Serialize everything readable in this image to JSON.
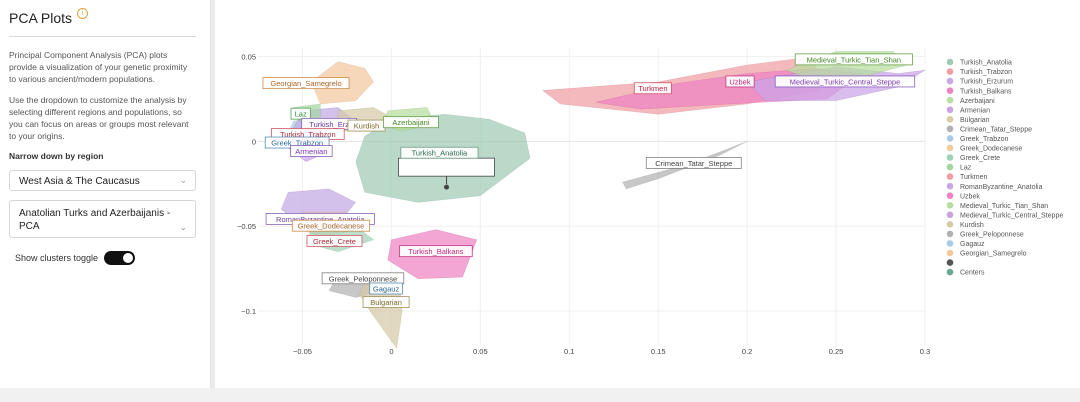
{
  "sidebar": {
    "title": "PCA Plots",
    "info_icon": "info-icon",
    "paragraph1": "Principal Component Analysis (PCA) plots provide a visualization of your genetic proximity to various ancient/modern populations.",
    "paragraph2": "Use the dropdown to customize the analysis by selecting different regions and populations, so you can focus on areas or groups most relevant to your origins.",
    "narrow_label": "Narrow down by region",
    "region_select": "West Asia & The Caucasus",
    "population_select": "Anatolian Turks and Azerbaijanis - PCA",
    "toggle_label": "Show clusters toggle",
    "toggle_on": true
  },
  "chart_data": {
    "type": "scatter",
    "xlim": [
      -0.075,
      0.3
    ],
    "ylim": [
      -0.12,
      0.055
    ],
    "x_ticks": [
      "−0.05",
      "0",
      "0.05",
      "0.1",
      "0.15",
      "0.2",
      "0.25",
      "0.3"
    ],
    "x_tick_values": [
      -0.05,
      0,
      0.05,
      0.1,
      0.15,
      0.2,
      0.25,
      0.3
    ],
    "y_ticks": [
      "0.05",
      "0",
      "−0.05",
      "−0.1"
    ],
    "y_tick_values": [
      0.05,
      0,
      -0.05,
      -0.1
    ],
    "grid": true,
    "legend_position": "right",
    "legend": [
      {
        "name": "Turkish_Anatolia",
        "color": "#9fcbb4"
      },
      {
        "name": "Turkish_Trabzon",
        "color": "#ef9ea3"
      },
      {
        "name": "Turkish_Erzurum",
        "color": "#c4a9e3"
      },
      {
        "name": "Turkish_Balkans",
        "color": "#ef82c2"
      },
      {
        "name": "Azerbaijani",
        "color": "#b7de9f"
      },
      {
        "name": "Armenian",
        "color": "#c9a3e6"
      },
      {
        "name": "Bulgarian",
        "color": "#d6cba6"
      },
      {
        "name": "Crimean_Tatar_Steppe",
        "color": "#b1b1b1"
      },
      {
        "name": "Greek_Trabzon",
        "color": "#a9cbe6"
      },
      {
        "name": "Greek_Dodecanese",
        "color": "#f2c89f"
      },
      {
        "name": "Greek_Crete",
        "color": "#9fd3b9"
      },
      {
        "name": "Laz",
        "color": "#a4d6a4"
      },
      {
        "name": "Turkmen",
        "color": "#ef9ea3"
      },
      {
        "name": "RomanByzantine_Anatolia",
        "color": "#c4a9e3"
      },
      {
        "name": "Uzbek",
        "color": "#ef82c2"
      },
      {
        "name": "Medieval_Turkic_Tian_Shan",
        "color": "#b7de9f"
      },
      {
        "name": "Medieval_Turkic_Central_Steppe",
        "color": "#c9a3e6"
      },
      {
        "name": "Kurdish",
        "color": "#d6cba6"
      },
      {
        "name": "Greek_Peloponnese",
        "color": "#b1b1b1"
      },
      {
        "name": "Gagauz",
        "color": "#a9cbe6"
      },
      {
        "name": "Georgian_Samegrelo",
        "color": "#f2c89f"
      },
      {
        "name": "",
        "color": "#555555"
      },
      {
        "name": "Centers",
        "color": "#6aa890"
      }
    ],
    "clusters": [
      {
        "name": "Turkish_Anatolia",
        "color": "#9fcbb4",
        "border": "#6b9a82",
        "hull": [
          [
            -0.015,
            0.003
          ],
          [
            0.0,
            0.013
          ],
          [
            0.03,
            0.016
          ],
          [
            0.055,
            0.013
          ],
          [
            0.075,
            0.005
          ],
          [
            0.078,
            -0.01
          ],
          [
            0.05,
            -0.032
          ],
          [
            0.015,
            -0.036
          ],
          [
            -0.015,
            -0.03
          ],
          [
            -0.02,
            -0.012
          ]
        ]
      },
      {
        "name": "Turkmen",
        "color": "#ef9ea3",
        "border": "#d35863",
        "hull": [
          [
            0.085,
            0.03
          ],
          [
            0.15,
            0.035
          ],
          [
            0.2,
            0.045
          ],
          [
            0.238,
            0.05
          ],
          [
            0.24,
            0.03
          ],
          [
            0.2,
            0.022
          ],
          [
            0.15,
            0.016
          ],
          [
            0.095,
            0.022
          ]
        ]
      },
      {
        "name": "Uzbek",
        "color": "#ef82c2",
        "border": "#c23785",
        "hull": [
          [
            0.115,
            0.023
          ],
          [
            0.16,
            0.034
          ],
          [
            0.2,
            0.04
          ],
          [
            0.24,
            0.043
          ],
          [
            0.265,
            0.04
          ],
          [
            0.245,
            0.025
          ],
          [
            0.19,
            0.022
          ],
          [
            0.14,
            0.019
          ]
        ]
      },
      {
        "name": "Medieval_Turkic_Central_Steppe",
        "color": "#c9a3e6",
        "border": "#8b5ec0",
        "hull": [
          [
            0.2,
            0.035
          ],
          [
            0.25,
            0.044
          ],
          [
            0.285,
            0.04
          ],
          [
            0.3,
            0.042
          ],
          [
            0.285,
            0.032
          ],
          [
            0.25,
            0.024
          ],
          [
            0.21,
            0.024
          ]
        ]
      },
      {
        "name": "Medieval_Turkic_Tian_Shan",
        "color": "#b7de9f",
        "border": "#6aa24a",
        "hull": [
          [
            0.222,
            0.042
          ],
          [
            0.25,
            0.053
          ],
          [
            0.282,
            0.053
          ],
          [
            0.29,
            0.045
          ],
          [
            0.265,
            0.038
          ],
          [
            0.232,
            0.038
          ]
        ]
      },
      {
        "name": "Crimean_Tatar_Steppe",
        "color": "#b1b1b1",
        "border": "#808080",
        "hull": [
          [
            0.13,
            -0.024
          ],
          [
            0.165,
            -0.014
          ],
          [
            0.188,
            -0.005
          ],
          [
            0.2,
            0.0
          ],
          [
            0.185,
            -0.008
          ],
          [
            0.15,
            -0.022
          ],
          [
            0.132,
            -0.028
          ]
        ]
      },
      {
        "name": "Georgian_Samegrelo",
        "color": "#f2c89f",
        "border": "#c98b4a",
        "hull": [
          [
            -0.03,
            0.047
          ],
          [
            -0.015,
            0.043
          ],
          [
            -0.01,
            0.035
          ],
          [
            -0.02,
            0.024
          ],
          [
            -0.04,
            0.022
          ],
          [
            -0.045,
            0.035
          ]
        ]
      },
      {
        "name": "Greek_Trabzon",
        "color": "#a9cbe6",
        "border": "#5a8fb8",
        "hull": [
          [
            -0.055,
            0.012
          ],
          [
            -0.04,
            0.014
          ],
          [
            -0.035,
            0.004
          ],
          [
            -0.05,
            0.0
          ],
          [
            -0.058,
            0.005
          ]
        ]
      },
      {
        "name": "Turkish_Erzurum",
        "color": "#c4a9e3",
        "border": "#8966b6",
        "hull": [
          [
            -0.05,
            0.018
          ],
          [
            -0.03,
            0.02
          ],
          [
            -0.02,
            0.012
          ],
          [
            -0.04,
            0.004
          ],
          [
            -0.055,
            0.008
          ]
        ]
      },
      {
        "name": "Armenian",
        "color": "#c9a3e6",
        "border": "#8b5ec0",
        "hull": [
          [
            -0.055,
            0.004
          ],
          [
            -0.04,
            0.006
          ],
          [
            -0.035,
            -0.006
          ],
          [
            -0.048,
            -0.012
          ],
          [
            -0.058,
            -0.004
          ]
        ]
      },
      {
        "name": "Kurdish",
        "color": "#d6cba6",
        "border": "#a2925a",
        "hull": [
          [
            -0.03,
            0.018
          ],
          [
            -0.01,
            0.02
          ],
          [
            0.0,
            0.014
          ],
          [
            -0.01,
            0.006
          ],
          [
            -0.03,
            0.006
          ]
        ]
      },
      {
        "name": "Azerbaijani",
        "color": "#b7de9f",
        "border": "#6aa24a",
        "hull": [
          [
            -0.002,
            0.018
          ],
          [
            0.02,
            0.02
          ],
          [
            0.025,
            0.01
          ],
          [
            0.005,
            0.006
          ],
          [
            -0.005,
            0.01
          ]
        ]
      },
      {
        "name": "Laz",
        "color": "#a4d6a4",
        "border": "#5aa05a",
        "hull": [
          [
            -0.055,
            0.02
          ],
          [
            -0.04,
            0.022
          ],
          [
            -0.04,
            0.012
          ],
          [
            -0.052,
            0.012
          ]
        ]
      },
      {
        "name": "RomanByzantine_Anatolia",
        "color": "#c4a9e3",
        "border": "#8966b6",
        "hull": [
          [
            -0.058,
            -0.03
          ],
          [
            -0.035,
            -0.028
          ],
          [
            -0.02,
            -0.036
          ],
          [
            -0.028,
            -0.046
          ],
          [
            -0.05,
            -0.05
          ],
          [
            -0.062,
            -0.04
          ]
        ]
      },
      {
        "name": "Greek_Dodecanese",
        "color": "#f2c89f",
        "border": "#c98b4a",
        "hull": [
          [
            -0.05,
            -0.042
          ],
          [
            -0.025,
            -0.042
          ],
          [
            -0.018,
            -0.052
          ],
          [
            -0.04,
            -0.056
          ],
          [
            -0.056,
            -0.05
          ]
        ]
      },
      {
        "name": "Greek_Crete",
        "color": "#9fd3b9",
        "border": "#5aa386",
        "hull": [
          [
            -0.045,
            -0.052
          ],
          [
            -0.02,
            -0.05
          ],
          [
            -0.01,
            -0.058
          ],
          [
            -0.03,
            -0.065
          ],
          [
            -0.048,
            -0.06
          ]
        ]
      },
      {
        "name": "Turkish_Balkans",
        "color": "#ef82c2",
        "border": "#c23785",
        "hull": [
          [
            0.0,
            -0.058
          ],
          [
            0.025,
            -0.052
          ],
          [
            0.048,
            -0.058
          ],
          [
            0.04,
            -0.08
          ],
          [
            0.015,
            -0.081
          ],
          [
            -0.002,
            -0.07
          ]
        ]
      },
      {
        "name": "Greek_Peloponnese",
        "color": "#b1b1b1",
        "border": "#808080",
        "hull": [
          [
            -0.032,
            -0.082
          ],
          [
            -0.008,
            -0.079
          ],
          [
            0.0,
            -0.087
          ],
          [
            -0.02,
            -0.092
          ],
          [
            -0.035,
            -0.088
          ]
        ]
      },
      {
        "name": "Gagauz",
        "color": "#a9cbe6",
        "border": "#5a8fb8",
        "hull": [
          [
            -0.015,
            -0.081
          ],
          [
            -0.002,
            -0.08
          ],
          [
            0.001,
            -0.086
          ],
          [
            -0.012,
            -0.088
          ]
        ]
      },
      {
        "name": "Bulgarian",
        "color": "#d6cba6",
        "border": "#a2925a",
        "hull": [
          [
            -0.015,
            -0.082
          ],
          [
            0.004,
            -0.078
          ],
          [
            0.006,
            -0.1
          ],
          [
            0.003,
            -0.122
          ],
          [
            -0.012,
            -0.1
          ],
          [
            -0.018,
            -0.09
          ]
        ]
      }
    ],
    "labels": [
      {
        "text": "Medieval_Turkic_Tian_Shan",
        "x": 0.26,
        "y": 0.048,
        "color": "#4a8a2a",
        "border": "#6aa24a"
      },
      {
        "text": "Turkmen",
        "x": 0.147,
        "y": 0.031,
        "color": "#c0284a",
        "border": "#d35863"
      },
      {
        "text": "Uzbek",
        "x": 0.196,
        "y": 0.035,
        "color": "#c0287a",
        "border": "#c23785"
      },
      {
        "text": "Medieval_Turkic_Central_Steppe",
        "x": 0.255,
        "y": 0.035,
        "color": "#7a3eb0",
        "border": "#8b5ec0"
      },
      {
        "text": "Georgian_Samegrelo",
        "x": -0.048,
        "y": 0.034,
        "color": "#a8662a",
        "border": "#c98b4a"
      },
      {
        "text": "Laz",
        "x": -0.051,
        "y": 0.016,
        "color": "#3a8a3a",
        "border": "#5aa05a"
      },
      {
        "text": "Turkish_Erz",
        "x": -0.035,
        "y": 0.01,
        "color": "#6a3ea0",
        "border": "#8966b6"
      },
      {
        "text": "Kurdish",
        "x": -0.014,
        "y": 0.009,
        "color": "#7a6a2a",
        "border": "#a2925a"
      },
      {
        "text": "Azerbaijani",
        "x": 0.011,
        "y": 0.011,
        "color": "#4a8a2a",
        "border": "#6aa24a"
      },
      {
        "text": "Turkish_Trabzon",
        "x": -0.047,
        "y": 0.004,
        "color": "#b02a3a",
        "border": "#d35863"
      },
      {
        "text": "Greek_Trabzon",
        "x": -0.053,
        "y": -0.001,
        "color": "#2a6a9a",
        "border": "#5a8fb8"
      },
      {
        "text": "Armenian",
        "x": -0.045,
        "y": -0.006,
        "color": "#7a3eb0",
        "border": "#8b5ec0"
      },
      {
        "text": "Turkish_Anatolia",
        "x": 0.027,
        "y": -0.007,
        "color": "#2a6a4a",
        "border": "#6b9a82"
      },
      {
        "text": "Crimean_Tatar_Steppe",
        "x": 0.17,
        "y": -0.013,
        "color": "#444444",
        "border": "#808080"
      },
      {
        "text": "RomanByzantine_Anatolia",
        "x": -0.04,
        "y": -0.046,
        "color": "#6a3ea0",
        "border": "#8966b6"
      },
      {
        "text": "Greek_Dodecanese",
        "x": -0.034,
        "y": -0.05,
        "color": "#a8662a",
        "border": "#c98b4a"
      },
      {
        "text": "Greek_Crete",
        "x": -0.032,
        "y": -0.059,
        "color": "#b02a3a",
        "border": "#d35863"
      },
      {
        "text": "Turkish_Balkans",
        "x": 0.025,
        "y": -0.065,
        "color": "#c0287a",
        "border": "#c23785"
      },
      {
        "text": "Greek_Peloponnese",
        "x": -0.016,
        "y": -0.081,
        "color": "#444444",
        "border": "#808080"
      },
      {
        "text": "Gagauz",
        "x": -0.003,
        "y": -0.087,
        "color": "#2a6a9a",
        "border": "#5a8fb8"
      },
      {
        "text": "Bulgarian",
        "x": -0.003,
        "y": -0.095,
        "color": "#7a6a2a",
        "border": "#a2925a"
      }
    ],
    "user_point": {
      "x": 0.031,
      "y": -0.027,
      "color": "#444444"
    },
    "user_label": ""
  }
}
